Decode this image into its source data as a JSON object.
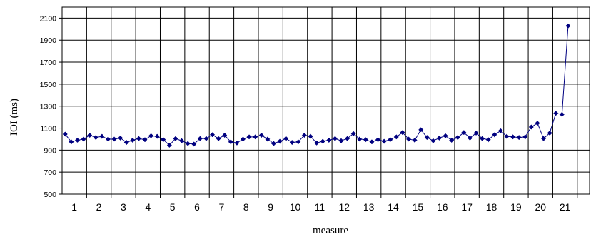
{
  "chart_data": {
    "type": "line",
    "xlabel": "measure",
    "ylabel": "IOI (ms)",
    "ylim": [
      500,
      2200
    ],
    "yticks": [
      500,
      700,
      900,
      1100,
      1300,
      1500,
      1700,
      1900,
      2100
    ],
    "xticks": [
      1,
      2,
      3,
      4,
      5,
      6,
      7,
      8,
      9,
      10,
      11,
      12,
      13,
      14,
      15,
      16,
      17,
      18,
      19,
      20,
      21
    ],
    "x_subdivisions_per_measure": 4,
    "grid": true,
    "legend": "none",
    "series": [
      {
        "color": "#000080",
        "marker": "diamond",
        "values": [
          1045,
          975,
          990,
          1000,
          1035,
          1015,
          1025,
          1000,
          1000,
          1010,
          970,
          990,
          1005,
          995,
          1030,
          1025,
          995,
          945,
          1005,
          985,
          960,
          955,
          1005,
          1005,
          1040,
          1005,
          1035,
          975,
          965,
          1000,
          1020,
          1020,
          1035,
          1000,
          960,
          980,
          1005,
          970,
          975,
          1035,
          1025,
          965,
          980,
          990,
          1005,
          985,
          1005,
          1050,
          1000,
          995,
          975,
          995,
          980,
          995,
          1020,
          1060,
          1000,
          990,
          1085,
          1015,
          985,
          1010,
          1030,
          990,
          1015,
          1060,
          1010,
          1055,
          1005,
          995,
          1040,
          1075,
          1025,
          1020,
          1015,
          1020,
          1110,
          1145,
          1005,
          1055,
          1235,
          1225,
          2030
        ]
      }
    ]
  }
}
